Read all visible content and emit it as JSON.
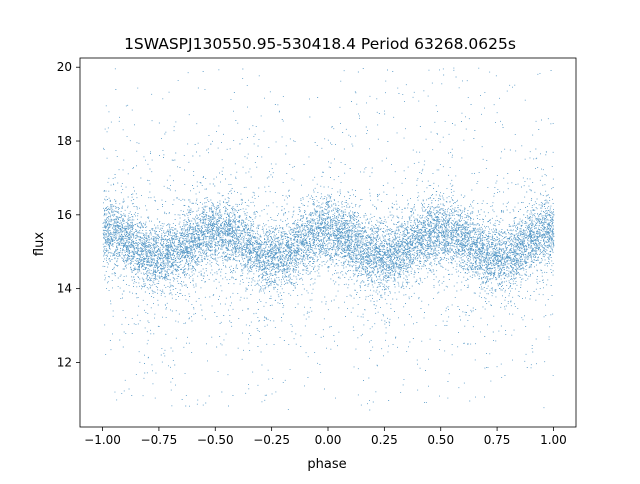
{
  "chart_data": {
    "type": "scatter",
    "title": "1SWASPJ130550.95-530418.4 Period 63268.0625s",
    "xlabel": "phase",
    "ylabel": "flux",
    "xlim": [
      -1.1,
      1.1
    ],
    "ylim": [
      10.25,
      20.25
    ],
    "x_ticks": [
      -1.0,
      -0.75,
      -0.5,
      -0.25,
      0.0,
      0.25,
      0.5,
      0.75,
      1.0
    ],
    "x_tick_labels": [
      "−1.00",
      "−0.75",
      "−0.50",
      "−0.25",
      "0.00",
      "0.25",
      "0.50",
      "0.75",
      "1.00"
    ],
    "y_ticks": [
      12,
      14,
      16,
      18,
      20
    ],
    "y_tick_labels": [
      "12",
      "14",
      "16",
      "18",
      "20"
    ],
    "grid": false,
    "point_color": "#1f77b4",
    "series": [
      {
        "phase_range": [
          -1.0,
          1.0
        ],
        "flux_range": [
          10.7,
          20.0
        ],
        "baseline_flux": 15.2,
        "variation_amplitude": 0.35,
        "core_band": [
          14.0,
          16.5
        ]
      }
    ]
  }
}
